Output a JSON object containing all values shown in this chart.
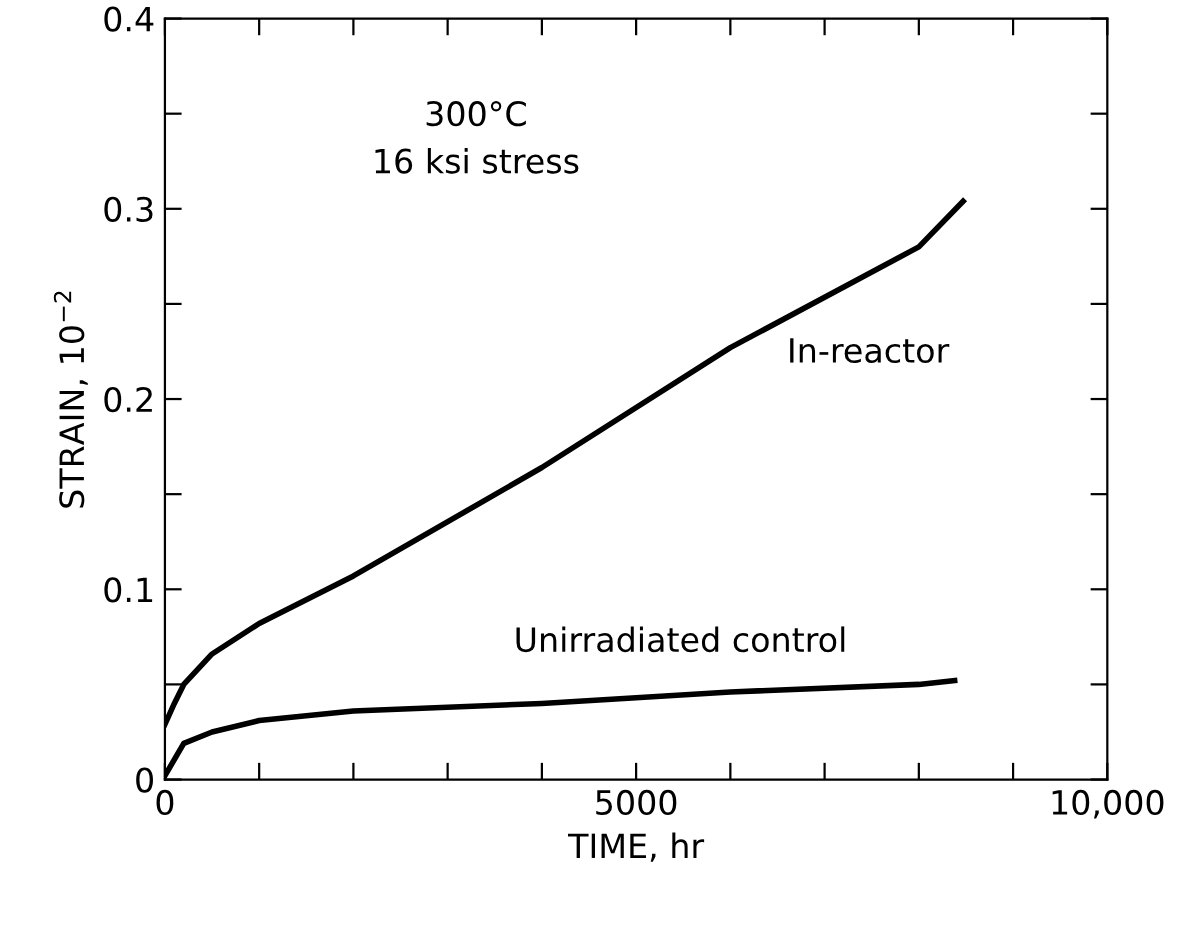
{
  "chart_data": {
    "type": "line",
    "xlabel": "TIME, hr",
    "ylabel": "STRAIN, 10$^{−2}$",
    "xlim": [
      0,
      10000
    ],
    "ylim": [
      0,
      0.4
    ],
    "xticks": [
      0,
      {
        "value": 1000,
        "label": null
      },
      {
        "value": 2000,
        "label": null
      },
      {
        "value": 3000,
        "label": null
      },
      {
        "value": 4000,
        "label": null
      },
      5000,
      {
        "value": 6000,
        "label": null
      },
      {
        "value": 7000,
        "label": null
      },
      {
        "value": 8000,
        "label": null
      },
      {
        "value": 9000,
        "label": null
      },
      {
        "value": 10000,
        "label": "10,000"
      }
    ],
    "yticks": [
      0,
      {
        "value": 0.05,
        "label": null
      },
      0.1,
      {
        "value": 0.15,
        "label": null
      },
      0.2,
      {
        "value": 0.25,
        "label": null
      },
      0.3,
      {
        "value": 0.35,
        "label": null
      },
      0.4
    ],
    "grid": false,
    "legend": false,
    "marker": "none",
    "line_style": "solid",
    "series": [
      {
        "color": "#000000",
        "x": [
          0,
          100,
          200,
          500,
          1000,
          2000,
          4000,
          6000,
          8000,
          8470
        ],
        "values": [
          0.029,
          0.04,
          0.05,
          0.066,
          0.082,
          0.107,
          0.164,
          0.227,
          0.28,
          0.304
        ]
      },
      {
        "color": "#000000",
        "x": [
          0,
          200,
          500,
          1000,
          2000,
          4000,
          6000,
          8000,
          8380
        ],
        "values": [
          0.002,
          0.019,
          0.025,
          0.031,
          0.036,
          0.04,
          0.046,
          0.05,
          0.052
        ]
      }
    ],
    "annotations": [
      "300°C\n16 ksi stress",
      "In-reactor",
      "Unirradiated control"
    ]
  }
}
